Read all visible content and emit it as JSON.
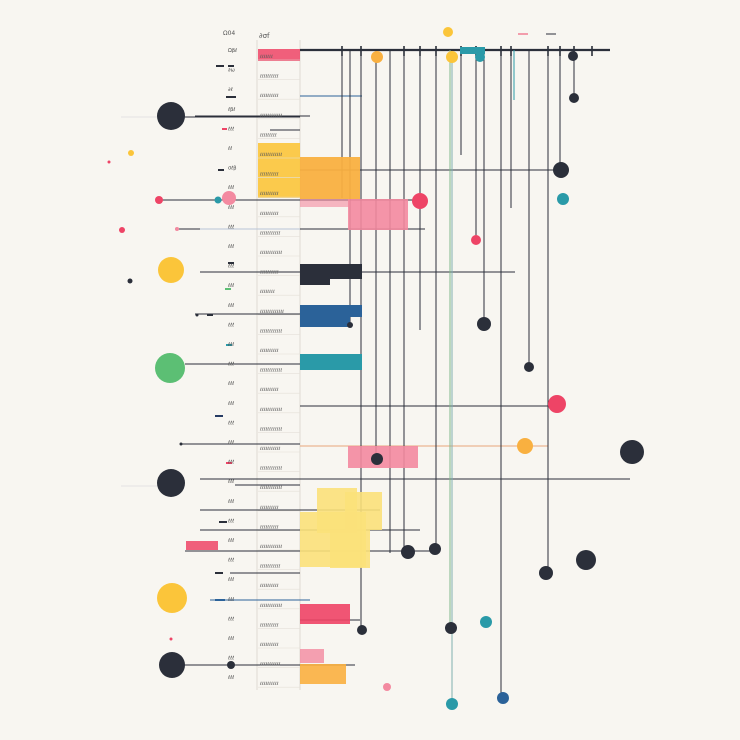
{
  "header": {
    "left_label": "Ω04",
    "right_label": "∂σf"
  },
  "palette": {
    "background": "#f8f6f1",
    "ink": "#2b2f3a",
    "red": "#ee4466",
    "pink": "#f38aa0",
    "yellow": "#fbc53a",
    "light_yellow": "#fbe17a",
    "orange": "#f9b040",
    "green": "#5cbf74",
    "teal": "#2a9aa8",
    "blue": "#2b6299",
    "navy": "#263b63"
  },
  "row_labels": [
    "Ωβℓ",
    "∂ω",
    "∂ℓ",
    "ℓβℓ",
    "ℓℓℓ",
    "ℓℓ",
    "σℓβ",
    "ℓℓℓ",
    "ℓℓℓ",
    "ℓℓℓ",
    "ℓℓℓ",
    "ℓℓℓ",
    "ℓℓℓ",
    "ℓℓℓ",
    "ℓℓℓ",
    "ℓℓℓ",
    "ℓℓℓ",
    "ℓℓℓ",
    "ℓℓℓ",
    "ℓℓℓ",
    "ℓℓℓ",
    "ℓℓℓ",
    "ℓℓℓ",
    "ℓℓℓ",
    "ℓℓℓ",
    "ℓℓℓ",
    "ℓℓℓ",
    "ℓℓℓ",
    "ℓℓℓ",
    "ℓℓℓ",
    "ℓℓℓ",
    "ℓℓℓ",
    "ℓℓℓ"
  ],
  "row_captions": [
    "ℓℓℓℓℓℓℓ",
    "ℓℓℓℓℓℓℓℓℓℓ",
    "ℓℓℓℓℓℓℓℓℓℓ",
    "ℓℓℓℓℓℓℓℓℓℓℓℓ",
    "ℓℓℓℓℓℓℓℓℓ",
    "ℓℓℓℓℓℓℓℓℓℓℓℓ",
    "ℓℓℓℓℓℓℓℓℓℓ",
    "ℓℓℓℓℓℓℓℓℓℓ",
    "ℓℓℓℓℓℓℓℓℓℓ",
    "ℓℓℓℓℓℓℓℓℓℓℓ",
    "ℓℓℓℓℓℓℓℓℓℓℓℓ",
    "ℓℓℓℓℓℓℓℓℓℓ",
    "ℓℓℓℓℓℓℓℓ",
    "ℓℓℓℓℓℓℓℓℓℓℓℓℓ",
    "ℓℓℓℓℓℓℓℓℓℓℓℓ",
    "ℓℓℓℓℓℓℓℓℓℓ",
    "ℓℓℓℓℓℓℓℓℓℓℓℓ",
    "ℓℓℓℓℓℓℓℓℓℓ",
    "ℓℓℓℓℓℓℓℓℓℓℓℓ",
    "ℓℓℓℓℓℓℓℓℓℓℓℓ",
    "ℓℓℓℓℓℓℓℓℓℓℓ",
    "ℓℓℓℓℓℓℓℓℓℓℓℓ",
    "ℓℓℓℓℓℓℓℓℓℓℓℓ",
    "ℓℓℓℓℓℓℓℓℓℓ",
    "ℓℓℓℓℓℓℓℓℓℓ",
    "ℓℓℓℓℓℓℓℓℓℓℓℓ",
    "ℓℓℓℓℓℓℓℓℓℓℓ",
    "ℓℓℓℓℓℓℓℓℓℓ",
    "ℓℓℓℓℓℓℓℓℓℓℓℓ",
    "ℓℓℓℓℓℓℓℓℓℓ",
    "ℓℓℓℓℓℓℓℓℓℓ",
    "ℓℓℓℓℓℓℓℓℓℓℓ",
    "ℓℓℓℓℓℓℓℓℓℓ"
  ]
}
